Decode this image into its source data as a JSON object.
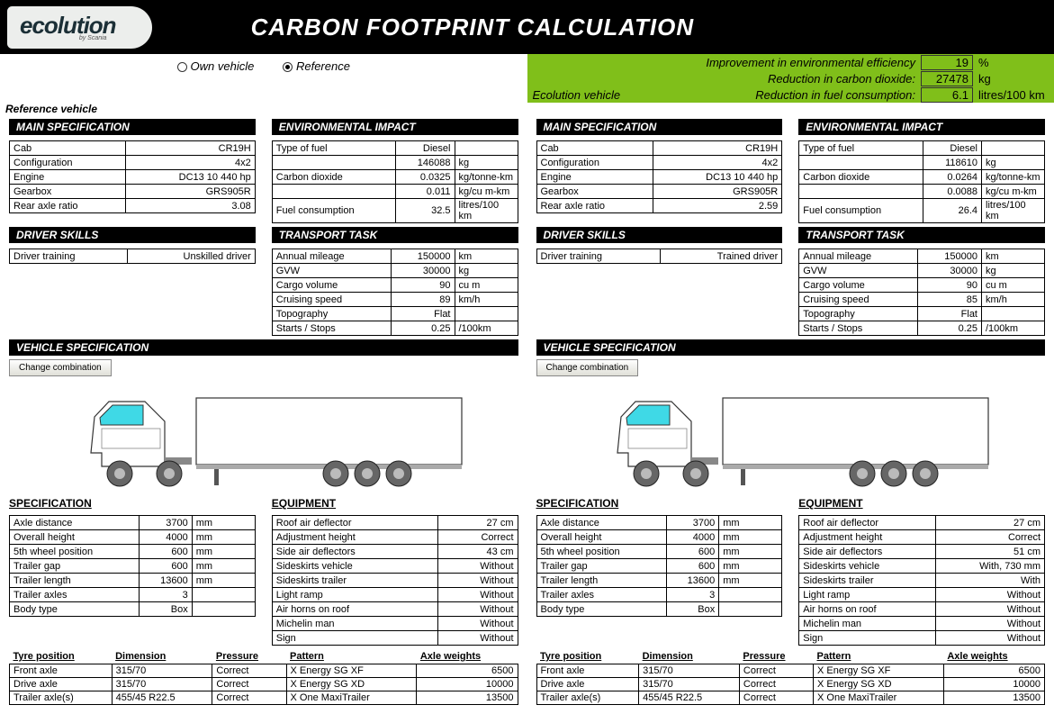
{
  "header": {
    "logo_main": "ecolution",
    "logo_sub": "by Scania",
    "title": "CARBON FOOTPRINT CALCULATION"
  },
  "radios": {
    "own": "Own vehicle",
    "ref": "Reference",
    "selected": "ref"
  },
  "summary": {
    "l1": "Improvement in environmental efficiency",
    "v1": "19",
    "u1": "%",
    "l2": "Reduction in carbon dioxide:",
    "v2": "27478",
    "u2": "kg",
    "l3_left": "Ecolution vehicle",
    "l3": "Reduction in fuel consumption:",
    "v3": "6.1",
    "u3": "litres/100 km"
  },
  "labels": {
    "ref": "Reference vehicle",
    "eco": ""
  },
  "sections": {
    "main_spec": "MAIN SPECIFICATION",
    "env_impact": "ENVIRONMENTAL IMPACT",
    "driver_skills": "DRIVER SKILLS",
    "transport_task": "TRANSPORT TASK",
    "vehicle_spec": "VEHICLE SPECIFICATION",
    "specification": "SPECIFICATION",
    "equipment": "EQUIPMENT",
    "change_btn": "Change combination"
  },
  "main_spec": {
    "rows": [
      "Cab",
      "Configuration",
      "Engine",
      "Gearbox",
      "Rear axle ratio"
    ],
    "ref": [
      "CR19H",
      "4x2",
      "DC13 10 440 hp",
      "GRS905R",
      "3.08"
    ],
    "eco": [
      "CR19H",
      "4x2",
      "DC13 10 440 hp",
      "GRS905R",
      "2.59"
    ]
  },
  "env": {
    "rows": [
      "Type of fuel",
      "",
      "Carbon dioxide",
      "",
      "Fuel consumption"
    ],
    "ref_v": [
      "Diesel",
      "146088",
      "0.0325",
      "0.011",
      "32.5"
    ],
    "eco_v": [
      "Diesel",
      "118610",
      "0.0264",
      "0.0088",
      "26.4"
    ],
    "units": [
      "",
      "kg",
      "kg/tonne-km",
      "kg/cu m-km",
      "litres/100 km"
    ]
  },
  "driver": {
    "row": "Driver training",
    "ref": "Unskilled driver",
    "eco": "Trained driver"
  },
  "task": {
    "rows": [
      "Annual mileage",
      "GVW",
      "Cargo volume",
      "Cruising speed",
      "Topography",
      "Starts / Stops"
    ],
    "ref_v": [
      "150000",
      "30000",
      "90",
      "89",
      "Flat",
      "0.25"
    ],
    "eco_v": [
      "150000",
      "30000",
      "90",
      "85",
      "Flat",
      "0.25"
    ],
    "units": [
      "km",
      "kg",
      "cu m",
      "km/h",
      "",
      "/100km"
    ]
  },
  "spec": {
    "rows": [
      "Axle distance",
      "Overall height",
      "5th wheel position",
      "Trailer gap",
      "Trailer length",
      "Trailer axles",
      "Body type"
    ],
    "ref_v": [
      "3700",
      "4000",
      "600",
      "600",
      "13600",
      "3",
      "Box"
    ],
    "eco_v": [
      "3700",
      "4000",
      "600",
      "600",
      "13600",
      "3",
      "Box"
    ],
    "units": [
      "mm",
      "mm",
      "mm",
      "mm",
      "mm",
      "",
      ""
    ]
  },
  "equip": {
    "rows": [
      "Roof air deflector",
      "Adjustment height",
      "Side air deflectors",
      "Sideskirts vehicle",
      "Sideskirts trailer",
      "Light ramp",
      "Air horns on roof",
      "Michelin man",
      "Sign"
    ],
    "ref_v": [
      "27 cm",
      "Correct",
      "43 cm",
      "Without",
      "Without",
      "Without",
      "Without",
      "Without",
      "Without"
    ],
    "eco_v": [
      "27 cm",
      "Correct",
      "51 cm",
      "With, 730 mm",
      "With",
      "Without",
      "Without",
      "Without",
      "Without"
    ]
  },
  "tyre": {
    "headers": [
      "Tyre position",
      "Dimension",
      "Pressure",
      "Pattern",
      "Axle weights"
    ],
    "positions": [
      "Front axle",
      "Drive axle",
      "Trailer axle(s)"
    ],
    "dims": [
      "315/70",
      "315/70",
      "455/45 R22.5"
    ],
    "press": [
      "Correct",
      "Correct",
      "Correct"
    ],
    "patterns": [
      "X Energy SG XF",
      "X Energy SG XD",
      "X One MaxiTrailer"
    ],
    "weights": [
      "6500",
      "10000",
      "13500"
    ]
  },
  "colors": {
    "green": "#80bf1a",
    "truck_window": "#3fd9e6"
  }
}
